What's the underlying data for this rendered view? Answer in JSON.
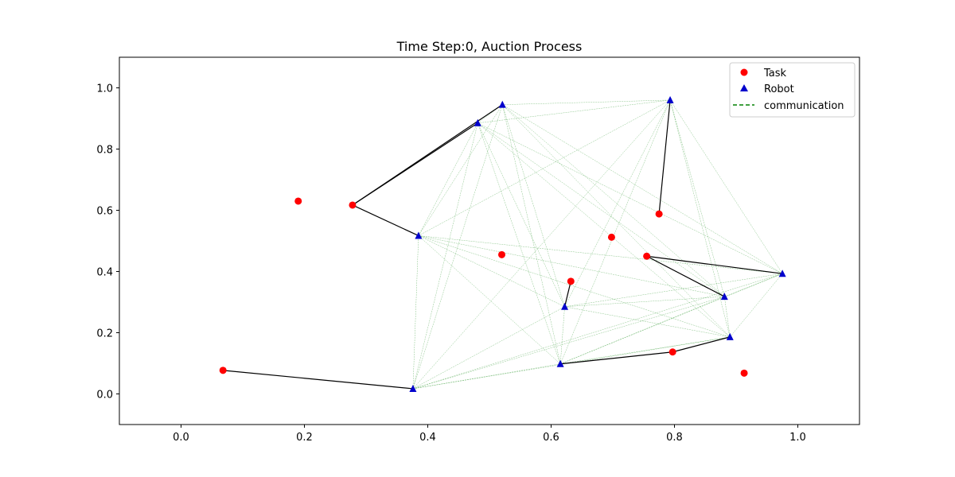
{
  "chart_data": {
    "type": "scatter",
    "title": "Time Step:0, Auction Process",
    "xlabel": "",
    "ylabel": "",
    "xlim": [
      -0.1,
      1.1
    ],
    "ylim": [
      -0.1,
      1.1
    ],
    "x_ticks": [
      "0.0",
      "0.2",
      "0.4",
      "0.6",
      "0.8",
      "1.0"
    ],
    "y_ticks": [
      "0.0",
      "0.2",
      "0.4",
      "0.6",
      "0.8",
      "1.0"
    ],
    "grid": false,
    "legend_position": "top-right",
    "legend": [
      {
        "label": "Task",
        "marker": "circle",
        "color": "#ff0000"
      },
      {
        "label": "Robot",
        "marker": "triangle",
        "color": "#0000cc"
      },
      {
        "label": "communication",
        "marker": "dashed-line",
        "color": "#008000"
      }
    ],
    "series": [
      {
        "name": "Task",
        "color": "#ff0000",
        "points": [
          [
            0.068,
            0.077
          ],
          [
            0.19,
            0.63
          ],
          [
            0.278,
            0.617
          ],
          [
            0.52,
            0.455
          ],
          [
            0.632,
            0.368
          ],
          [
            0.698,
            0.512
          ],
          [
            0.755,
            0.45
          ],
          [
            0.775,
            0.588
          ],
          [
            0.797,
            0.137
          ],
          [
            0.913,
            0.068
          ]
        ]
      },
      {
        "name": "Robot",
        "color": "#0000cc",
        "points": [
          [
            0.376,
            0.017
          ],
          [
            0.385,
            0.517
          ],
          [
            0.481,
            0.885
          ],
          [
            0.521,
            0.945
          ],
          [
            0.615,
            0.098
          ],
          [
            0.622,
            0.285
          ],
          [
            0.793,
            0.96
          ],
          [
            0.881,
            0.318
          ],
          [
            0.89,
            0.186
          ],
          [
            0.975,
            0.393
          ]
        ]
      }
    ],
    "communication_color": "#008000",
    "assignment_color": "#000000",
    "assignments": [
      [
        [
          0.068,
          0.077
        ],
        [
          0.376,
          0.017
        ]
      ],
      [
        [
          0.278,
          0.617
        ],
        [
          0.481,
          0.885
        ]
      ],
      [
        [
          0.278,
          0.617
        ],
        [
          0.521,
          0.945
        ]
      ],
      [
        [
          0.278,
          0.617
        ],
        [
          0.385,
          0.517
        ]
      ],
      [
        [
          0.775,
          0.588
        ],
        [
          0.793,
          0.96
        ]
      ],
      [
        [
          0.632,
          0.368
        ],
        [
          0.622,
          0.285
        ]
      ],
      [
        [
          0.755,
          0.45
        ],
        [
          0.975,
          0.393
        ]
      ],
      [
        [
          0.755,
          0.45
        ],
        [
          0.881,
          0.318
        ]
      ],
      [
        [
          0.615,
          0.098
        ],
        [
          0.797,
          0.137
        ]
      ],
      [
        [
          0.797,
          0.137
        ],
        [
          0.89,
          0.186
        ]
      ]
    ]
  }
}
